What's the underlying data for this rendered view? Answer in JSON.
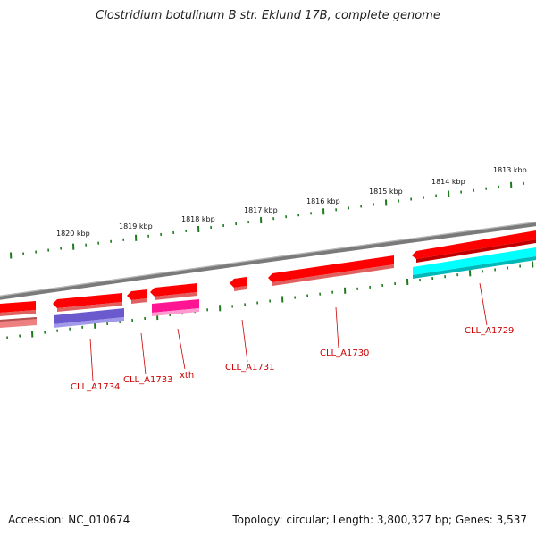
{
  "title": "Clostridium botulinum B str. Eklund 17B, complete genome",
  "footer": {
    "accession": "Accession: NC_010674",
    "summary": "Topology: circular; Length: 3,800,327 bp; Genes: 3,537"
  },
  "colors": {
    "backbone": "#7a7a7a",
    "tick": "#1e7a1e",
    "label": "#cc0000",
    "cds_forward": "#ff0000",
    "cds_reverse_light": "#ee8080",
    "gene_purple": "#6a5acd",
    "gene_magenta": "#ff1493",
    "gene_cyan": "#00ffff"
  },
  "scale_labels": [
    "1813 kbp",
    "1814 kbp",
    "1815 kbp",
    "1816 kbp",
    "1817 kbp",
    "1818 kbp",
    "1819 kbp",
    "1820 kbp"
  ],
  "gene_labels": [
    "CLL_A1729",
    "CLL_A1730",
    "CLL_A1731",
    "xth",
    "CLL_A1733",
    "CLL_A1734"
  ]
}
